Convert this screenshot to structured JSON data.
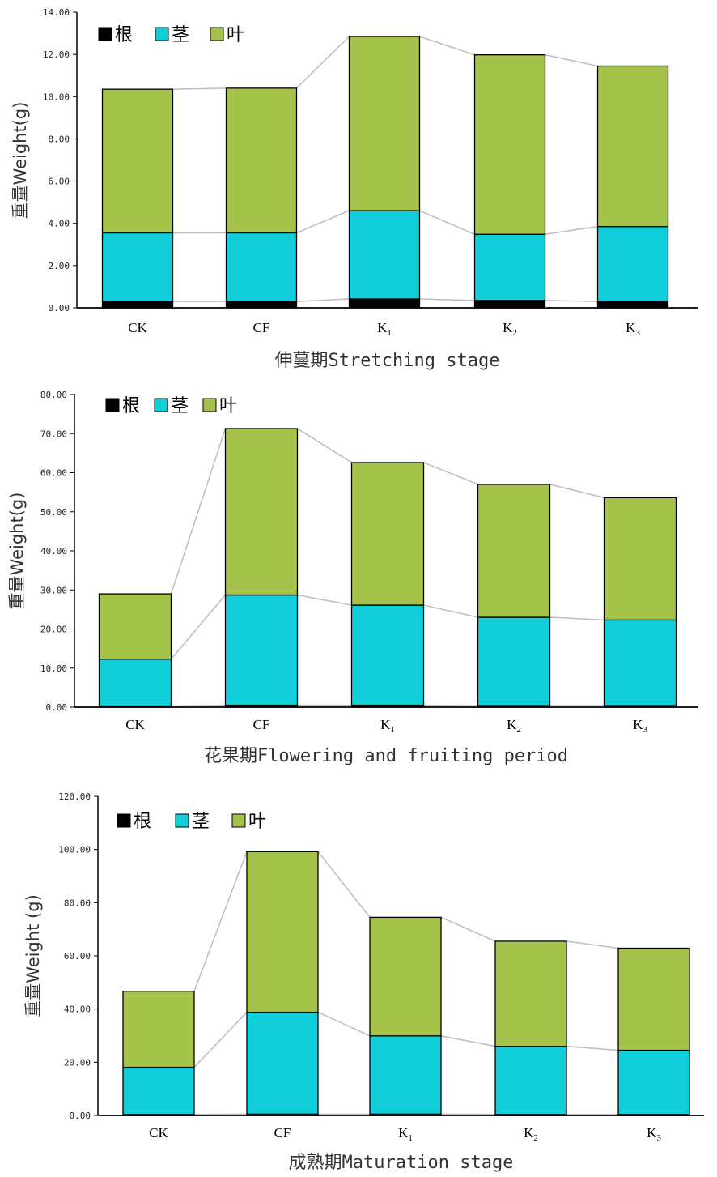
{
  "colors": {
    "root": "#000000",
    "stem": "#10CEDA",
    "leaf": "#A5C24A",
    "connector": "#BDBDBD",
    "outline": "#000000"
  },
  "chart_data": [
    {
      "type": "bar",
      "stacked": true,
      "categories": [
        {
          "main": "CK",
          "sub": ""
        },
        {
          "main": "CF",
          "sub": ""
        },
        {
          "main": "K",
          "sub": "1"
        },
        {
          "main": "K",
          "sub": "2"
        },
        {
          "main": "K",
          "sub": "3"
        }
      ],
      "series": [
        {
          "name": "根",
          "color_key": "root",
          "values": [
            0.3,
            0.3,
            0.42,
            0.35,
            0.3
          ]
        },
        {
          "name": "茎",
          "color_key": "stem",
          "values": [
            3.25,
            3.25,
            4.18,
            3.13,
            3.55
          ]
        },
        {
          "name": "叶",
          "color_key": "leaf",
          "values": [
            6.8,
            6.85,
            8.25,
            8.5,
            7.6
          ]
        }
      ],
      "ylabel": "重量Weight(g)",
      "xlabel": "伸蔓期Stretching stage",
      "ylim": [
        0,
        14
      ],
      "yticks": [
        "0.00",
        "2.00",
        "4.00",
        "6.00",
        "8.00",
        "10.00",
        "12.00",
        "14.00"
      ],
      "grid": false,
      "legend_position": "top-left",
      "connector_lines": true
    },
    {
      "type": "bar",
      "stacked": true,
      "categories": [
        {
          "main": "CK",
          "sub": ""
        },
        {
          "main": "CF",
          "sub": ""
        },
        {
          "main": "K",
          "sub": "1"
        },
        {
          "main": "K",
          "sub": "2"
        },
        {
          "main": "K",
          "sub": "3"
        }
      ],
      "series": [
        {
          "name": "根",
          "color_key": "root",
          "values": [
            0.3,
            0.5,
            0.5,
            0.4,
            0.4
          ]
        },
        {
          "name": "茎",
          "color_key": "stem",
          "values": [
            12.0,
            28.2,
            25.6,
            22.6,
            21.9
          ]
        },
        {
          "name": "叶",
          "color_key": "leaf",
          "values": [
            16.7,
            42.6,
            36.5,
            34.0,
            31.3
          ]
        }
      ],
      "ylabel": "重量Weight(g)",
      "xlabel": "花果期Flowering and fruiting period",
      "ylim": [
        0,
        80
      ],
      "yticks": [
        "0.00",
        "10.00",
        "20.00",
        "30.00",
        "40.00",
        "50.00",
        "60.00",
        "70.00",
        "80.00"
      ],
      "grid": false,
      "legend_position": "top-left",
      "connector_lines": true
    },
    {
      "type": "bar",
      "stacked": true,
      "categories": [
        {
          "main": "CK",
          "sub": ""
        },
        {
          "main": "CF",
          "sub": ""
        },
        {
          "main": "K",
          "sub": "1"
        },
        {
          "main": "K",
          "sub": "2"
        },
        {
          "main": "K",
          "sub": "3"
        }
      ],
      "series": [
        {
          "name": "根",
          "color_key": "root",
          "values": [
            0.4,
            0.5,
            0.5,
            0.4,
            0.4
          ]
        },
        {
          "name": "茎",
          "color_key": "stem",
          "values": [
            17.7,
            38.3,
            29.4,
            25.6,
            24.1
          ]
        },
        {
          "name": "叶",
          "color_key": "leaf",
          "values": [
            28.6,
            60.4,
            44.6,
            39.5,
            38.4
          ]
        }
      ],
      "ylabel": "重量Weight (g)",
      "xlabel": "成熟期Maturation stage",
      "ylim": [
        0,
        120
      ],
      "yticks": [
        "0.00",
        "20.00",
        "40.00",
        "60.00",
        "80.00",
        "100.00",
        "120.00"
      ],
      "grid": false,
      "legend_position": "top-left",
      "connector_lines": true
    }
  ]
}
